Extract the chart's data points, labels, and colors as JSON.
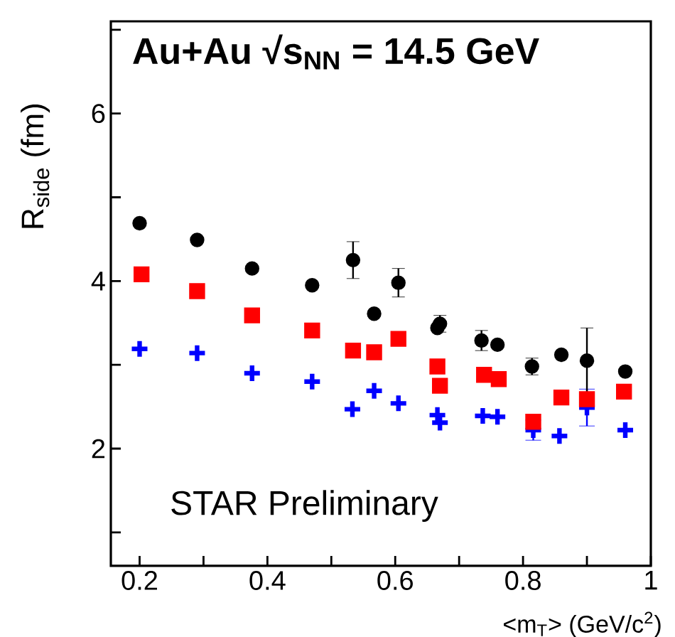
{
  "chart_data": {
    "type": "scatter",
    "title": "Au+Au √s$_{NN}$ = 14.5 GeV",
    "xlabel": "<m$_{T}$> (GeV/c$^{2}$)",
    "ylabel": "R$_{side}$ (fm)",
    "annotations": [
      "STAR Preliminary"
    ],
    "xlim": [
      0.155,
      1.0
    ],
    "ylim": [
      0.6,
      7.1
    ],
    "xticks": [
      0.2,
      {
        "value": 0.3,
        "label": null
      },
      0.4,
      {
        "value": 0.5,
        "label": null
      },
      0.6,
      {
        "value": 0.7,
        "label": null
      },
      0.8,
      {
        "value": 0.9,
        "label": null
      },
      1
    ],
    "yticks": [
      {
        "value": 1,
        "label": null
      },
      2,
      {
        "value": 3,
        "label": null
      },
      4,
      {
        "value": 5,
        "label": null
      },
      6,
      {
        "value": 7,
        "label": null
      }
    ],
    "grid": false,
    "series": [
      {
        "color": "#000000",
        "marker": "circle",
        "x": [
          0.2,
          0.29,
          0.376,
          0.47,
          0.567,
          0.666,
          0.76,
          0.86,
          0.96
        ],
        "values": [
          4.69,
          4.49,
          4.15,
          3.95,
          3.61,
          3.44,
          3.24,
          3.12,
          2.92
        ]
      },
      {
        "color": "#000000",
        "marker": "circle",
        "x": [
          0.534,
          0.605,
          0.67,
          0.735,
          0.814,
          0.9
        ],
        "values": [
          4.25,
          3.98,
          3.49,
          3.29,
          2.98,
          3.05
        ],
        "errors": [
          0.22,
          0.17,
          0.1,
          0.12,
          0.1,
          0.39
        ]
      },
      {
        "color": "#ff0000",
        "marker": "square",
        "x": [
          0.203,
          0.29,
          0.376,
          0.47,
          0.567,
          0.666,
          0.762,
          0.86,
          0.958
        ],
        "values": [
          4.08,
          3.88,
          3.59,
          3.41,
          3.15,
          2.98,
          2.83,
          2.61,
          2.68
        ]
      },
      {
        "color": "#ff0000",
        "marker": "square",
        "x": [
          0.534,
          0.605,
          0.67,
          0.739,
          0.816,
          0.9
        ],
        "values": [
          3.17,
          3.31,
          2.75,
          2.88,
          2.32,
          2.59
        ]
      },
      {
        "color": "#0000ff",
        "marker": "cross",
        "x": [
          0.2,
          0.29,
          0.376,
          0.47,
          0.567,
          0.666,
          0.76,
          0.857,
          0.96
        ],
        "values": [
          3.19,
          3.14,
          2.9,
          2.8,
          2.69,
          2.4,
          2.38,
          2.15,
          2.22
        ]
      },
      {
        "color": "#0000ff",
        "marker": "cross",
        "x": [
          0.533,
          0.605,
          0.67,
          0.737,
          0.816,
          0.9
        ],
        "values": [
          2.47,
          2.54,
          2.31,
          2.39,
          2.22,
          2.49
        ],
        "errors": [
          null,
          null,
          null,
          null,
          0.12,
          0.22
        ]
      }
    ]
  }
}
